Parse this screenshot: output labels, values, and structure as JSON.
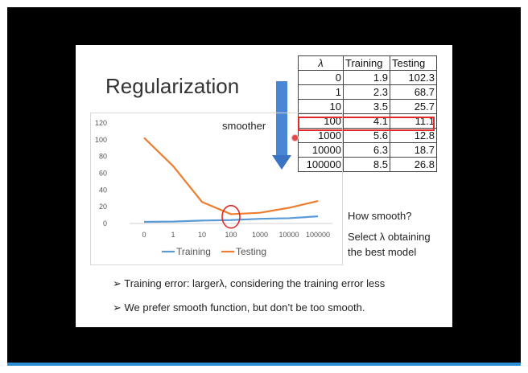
{
  "slide": {
    "title": "Regularization",
    "smoother_label": "smoother",
    "note_question": "How smooth?",
    "note_select": "Select λ obtaining the best model",
    "bullets": [
      "➢ Training error: largerλ, considering the training error less",
      "➢ We prefer smooth function, but don’t be too smooth."
    ]
  },
  "table": {
    "headers": [
      "λ",
      "Training",
      "Testing"
    ],
    "rows": [
      [
        "0",
        "1.9",
        "102.3"
      ],
      [
        "1",
        "2.3",
        "68.7"
      ],
      [
        "10",
        "3.5",
        "25.7"
      ],
      [
        "100",
        "4.1",
        "11.1"
      ],
      [
        "1000",
        "5.6",
        "12.8"
      ],
      [
        "10000",
        "6.3",
        "18.7"
      ],
      [
        "100000",
        "8.5",
        "26.8"
      ]
    ],
    "highlight_row": 3
  },
  "chart_data": {
    "type": "line",
    "categories": [
      "0",
      "1",
      "10",
      "100",
      "1000",
      "10000",
      "100000"
    ],
    "series": [
      {
        "name": "Training",
        "values": [
          1.9,
          2.3,
          3.5,
          4.1,
          5.6,
          6.3,
          8.5
        ],
        "color": "#5b9bd5"
      },
      {
        "name": "Testing",
        "values": [
          102.3,
          68.7,
          25.7,
          11.1,
          12.8,
          18.7,
          26.8
        ],
        "color": "#ed7d31"
      }
    ],
    "yticks": [
      "0",
      "20",
      "40",
      "60",
      "80",
      "100",
      "120"
    ],
    "ylim": [
      0,
      120
    ],
    "legend": "bottom",
    "grid": false,
    "annotation_circle_category": "100"
  },
  "colors": {
    "arrow": "#4a86d6",
    "highlight": "#e02a2a",
    "progress": "#2b8fd6"
  }
}
